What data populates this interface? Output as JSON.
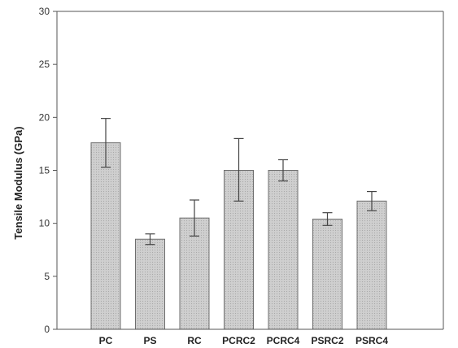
{
  "chart_data": {
    "type": "bar",
    "title": "",
    "xlabel": "",
    "ylabel": "Tensile Modulus (GPa)",
    "ylim": [
      0,
      30
    ],
    "yticks": [
      0,
      5,
      10,
      15,
      20,
      25,
      30
    ],
    "categories": [
      "PC",
      "PS",
      "RC",
      "PCRC2",
      "PCRC4",
      "PSRC2",
      "PSRC4"
    ],
    "values": [
      17.6,
      8.5,
      10.5,
      15.0,
      15.0,
      10.4,
      12.1
    ],
    "error_low": [
      15.3,
      8.0,
      8.8,
      12.1,
      14.0,
      9.8,
      11.2
    ],
    "error_high": [
      19.9,
      9.0,
      12.2,
      18.0,
      16.0,
      11.0,
      13.0
    ],
    "grid": false,
    "bar_color": "#c7c7c7",
    "bar_edge_color": "#6e6e6e",
    "error_color": "#444444",
    "axis_color": "#555555"
  }
}
